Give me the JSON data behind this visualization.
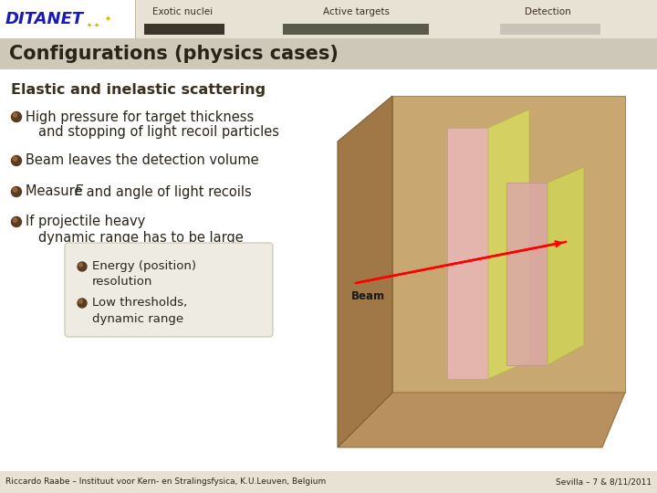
{
  "bg_color": "#f8f5ee",
  "header_bg": "#e8e2d4",
  "title_bar_bg": "#cec8b8",
  "title": "Configurations (physics cases)",
  "title_color": "#2a2418",
  "subtitle": "Elastic and inelastic scattering",
  "subtitle_color": "#3a3020",
  "nav_labels": [
    "Exotic nuclei",
    "Active targets",
    "Detection"
  ],
  "nav_bar_colors": [
    "#3d342a",
    "#5a5a48",
    "#c8c4b8"
  ],
  "nav_label_color": "#3a3020",
  "bullets": [
    [
      "High pressure for target thickness",
      "and stopping of light recoil particles"
    ],
    [
      "Beam leaves the detection volume"
    ],
    [
      "Measure _E_ and angle of light recoils"
    ],
    [
      "If projectile heavy",
      "dynamic range has to be large"
    ]
  ],
  "sub_bullets": [
    [
      "Energy (position)",
      "resolution"
    ],
    [
      "Low thresholds,",
      "dynamic range"
    ]
  ],
  "footer_left": "Riccardo Raabe – Instituut voor Kern- en Stralingsfysica, K.U.Leuven, Belgium",
  "footer_right": "Sevilla – 7 & 8/11/2011",
  "bullet_color": "#5a3c20",
  "text_color": "#2a2418",
  "beam_label": "Beam",
  "box3d": {
    "back_wall": "#c8a870",
    "back_wall_edge": "#a88850",
    "floor": "#b89060",
    "floor_edge": "#987040",
    "left_wall": "#a07848",
    "left_wall_edge": "#806030",
    "panel_pink1": "#e8b8b8",
    "panel_yellow1": "#d8d860",
    "panel_pink2": "#dca8a8",
    "panel_yellow2": "#d0d458"
  }
}
